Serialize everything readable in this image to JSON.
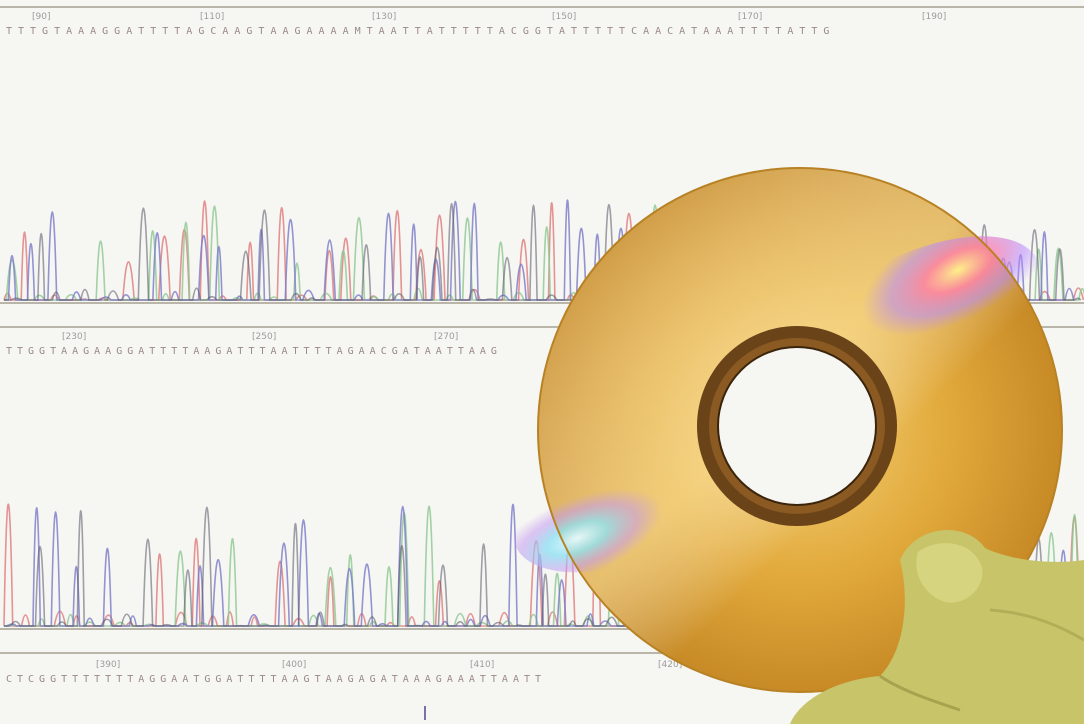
{
  "image": {
    "subject": "dna-sequencing-chromatogram-with-gold-cd",
    "colors": {
      "background": "#f6f6f3",
      "trace_red": "#e07a7a",
      "trace_green": "#8cc890",
      "trace_blue": "#7a7ac8",
      "trace_black": "#555566",
      "disc_gold": "#d8a43a",
      "disc_hub": "#5a3a18",
      "glove": "#c9c76a"
    }
  },
  "chromatogram": {
    "top_panel": {
      "positions": [
        "[90]",
        "[110]",
        "[130]",
        "[150]",
        "[170]",
        "[190]"
      ],
      "sequence": "TTTGTAAAGGATTTTAGCAAGTAAGAAAAMTAATTATTTTTACGGTATTTTTCAACATAAATTTTATTG"
    },
    "middle_panel": {
      "positions": [
        "[230]",
        "[250]",
        "[270]"
      ],
      "sequence": "TTGGTAAGAAGGATTTTAAGATTTAATTTTAGAACGATAATTAAG"
    },
    "bottom_panel": {
      "positions": [
        "[390]",
        "[400]",
        "[410]",
        "[420]"
      ],
      "sequence": "CTCGGTTTTTTTAGGAATGGATTTTAAGTAAGAGATAAAGAAATTAATT"
    }
  }
}
